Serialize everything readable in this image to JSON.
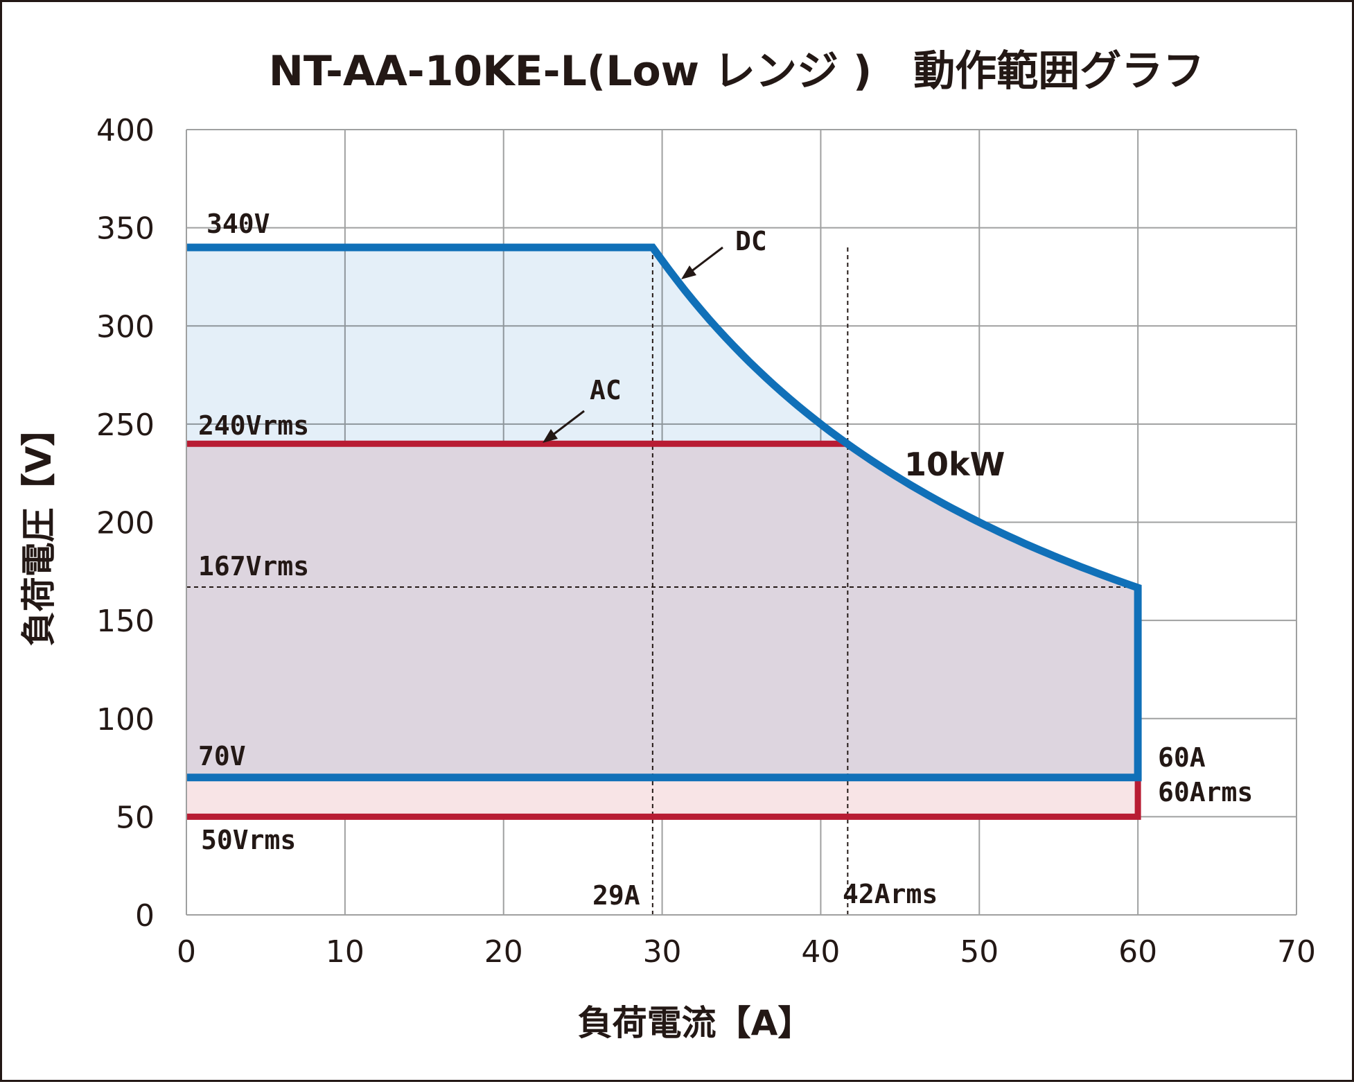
{
  "chart_data": {
    "type": "area",
    "title": "NT-AA-10KE-L(Low レンジ )　動作範囲グラフ",
    "xlabel": "負荷電流【A】",
    "ylabel": "負荷電圧【V】",
    "xlim": [
      0,
      70
    ],
    "ylim": [
      0,
      400
    ],
    "x_ticks": [
      "0",
      "10",
      "20",
      "30",
      "40",
      "50",
      "60",
      "70"
    ],
    "y_ticks": [
      "0",
      "50",
      "100",
      "150",
      "200",
      "250",
      "300",
      "350",
      "400"
    ],
    "grid": true,
    "power_limit_w": 10000,
    "series": [
      {
        "name": "DC",
        "color": "#1070b8",
        "fill": "#e4eff8",
        "x": [
          0,
          29.4,
          60,
          60,
          0
        ],
        "y": [
          340,
          340,
          166.7,
          70,
          70
        ],
        "curve": "constant power 10kW between 29.4A and 60A"
      },
      {
        "name": "AC",
        "color": "#b81c33",
        "fill": "#f8e4e6",
        "x": [
          0,
          41.7,
          60,
          60,
          0
        ],
        "y": [
          240,
          240,
          166.7,
          50,
          50
        ],
        "curve": "constant power 10kW between 41.7A and 60A"
      }
    ],
    "reference_lines": {
      "horizontal": [
        {
          "y": 167
        }
      ],
      "vertical": [
        {
          "x": 29.4
        },
        {
          "x": 41.7
        }
      ]
    },
    "annotations": {
      "v340": "340V",
      "v240": "240Vrms",
      "v167": "167Vrms",
      "v70": "70V",
      "v50": "50Vrms",
      "a29": "29A",
      "a42": "42Arms",
      "a60": "60A",
      "a60rms": "60Arms",
      "power": "10kW",
      "dc": "DC",
      "ac": "AC"
    }
  }
}
